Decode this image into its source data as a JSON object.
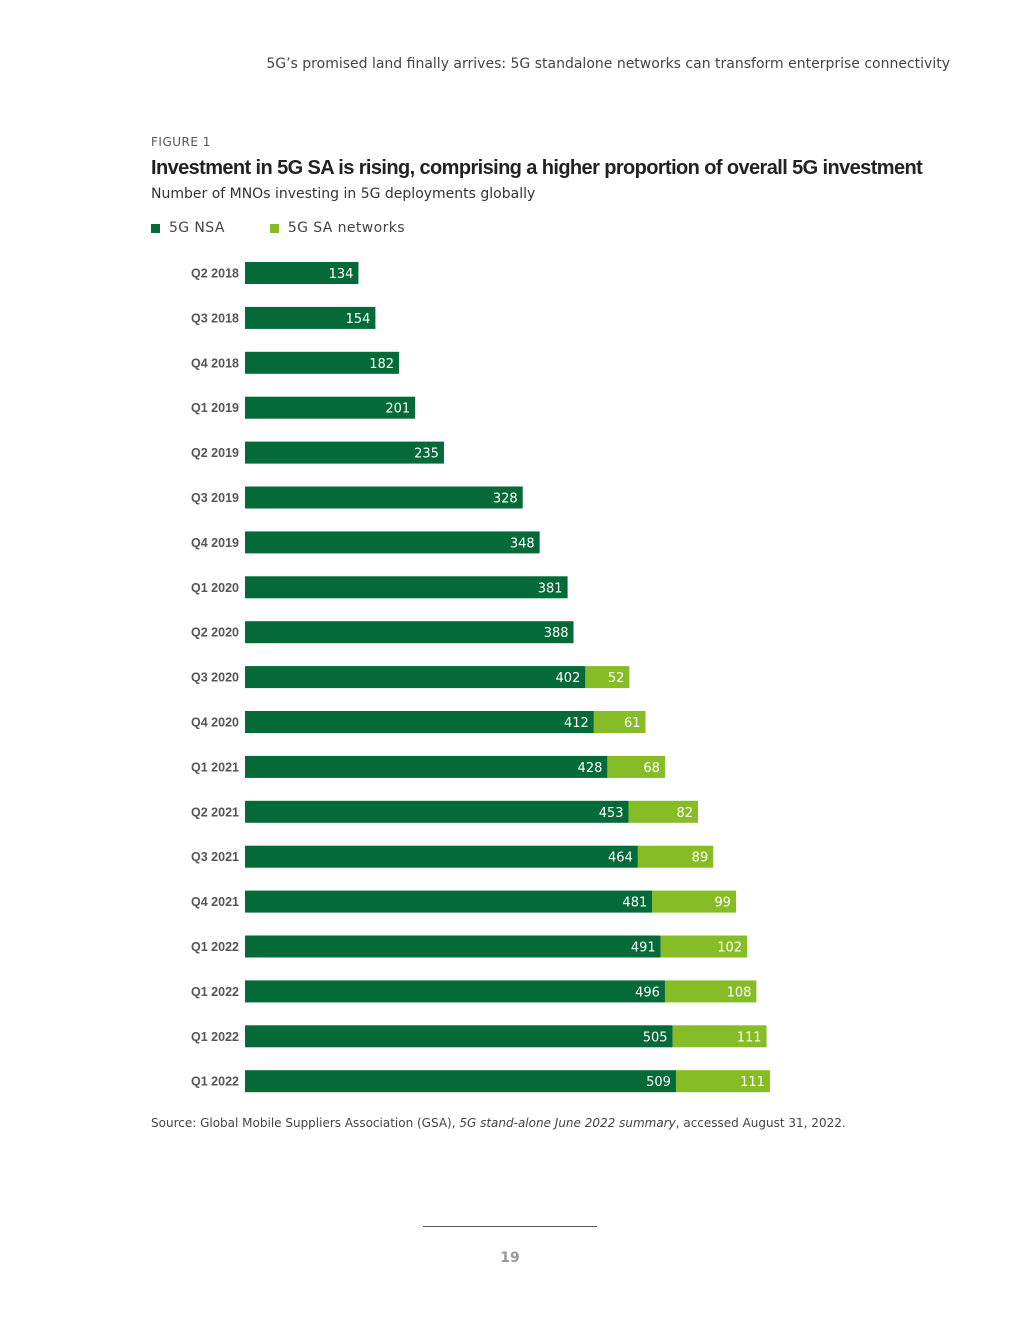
{
  "header": {
    "running_title": "5G’s promised land finally arrives: 5G standalone networks can transform enterprise connectivity"
  },
  "figure": {
    "label": "FIGURE 1",
    "title": "Investment in 5G SA is rising, comprising a higher proportion of overall 5G investment",
    "subtitle": "Number of MNOs investing in 5G deployments globally"
  },
  "chart_data": {
    "type": "bar",
    "orientation": "horizontal",
    "stacked": true,
    "title": "Investment in 5G SA is rising, comprising a higher proportion of overall 5G investment",
    "subtitle": "Number of MNOs investing in 5G deployments globally",
    "xlabel": "",
    "ylabel": "",
    "xlim": [
      0,
      700
    ],
    "grid": false,
    "legend_position": "top-left",
    "categories": [
      "Q2 2018",
      "Q3 2018",
      "Q4 2018",
      "Q1 2019",
      "Q2 2019",
      "Q3 2019",
      "Q4 2019",
      "Q1 2020",
      "Q2 2020",
      "Q3 2020",
      "Q4 2020",
      "Q1 2021",
      "Q2 2021",
      "Q3 2021",
      "Q4 2021",
      "Q1 2022",
      "Q1 2022",
      "Q1 2022",
      "Q1 2022"
    ],
    "series": [
      {
        "name": "5G NSA",
        "color": "#046a38",
        "values": [
          134,
          154,
          182,
          201,
          235,
          328,
          348,
          381,
          388,
          402,
          412,
          428,
          453,
          464,
          481,
          491,
          496,
          505,
          509
        ]
      },
      {
        "name": "5G SA networks",
        "color": "#86bc25",
        "values": [
          null,
          null,
          null,
          null,
          null,
          null,
          null,
          null,
          null,
          52,
          61,
          68,
          82,
          89,
          99,
          102,
          108,
          111,
          111
        ]
      }
    ]
  },
  "source": {
    "prefix": "Source: Global Mobile Suppliers Association (GSA), ",
    "title": "5G stand-alone June 2022 summary",
    "suffix": ", accessed August 31, 2022."
  },
  "footer": {
    "page_number": "19"
  }
}
